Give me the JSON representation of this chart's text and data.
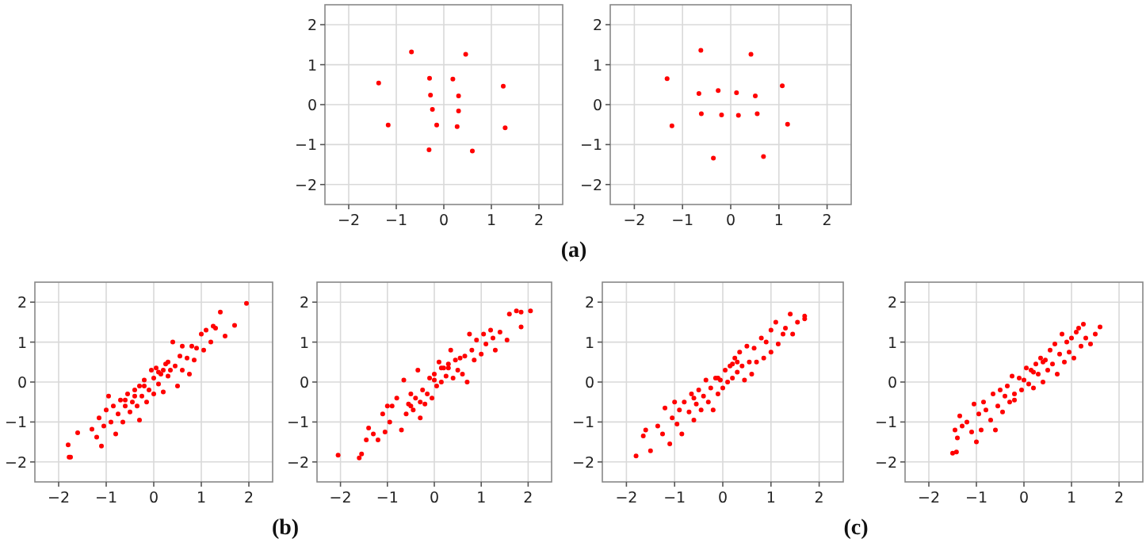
{
  "chart_data": [
    {
      "type": "scatter",
      "color": "#ff0000",
      "marker": "circle",
      "grid": true,
      "xlim": [
        -2.5,
        2.5
      ],
      "ylim": [
        -2.5,
        2.5
      ],
      "xticks": [
        -2,
        -1,
        0,
        1,
        2
      ],
      "yticks": [
        -2,
        -1,
        0,
        1,
        2
      ],
      "annotations": [
        "(a)"
      ],
      "x": [
        -0.68,
        0.46,
        -1.37,
        -0.3,
        0.19,
        1.25,
        -0.28,
        0.31,
        -0.24,
        0.31,
        -1.17,
        -0.15,
        0.28,
        1.29,
        -0.31,
        0.6
      ],
      "values": [
        1.32,
        1.26,
        0.54,
        0.66,
        0.64,
        0.46,
        0.24,
        0.22,
        -0.12,
        -0.16,
        -0.51,
        -0.51,
        -0.55,
        -0.58,
        -1.13,
        -1.16
      ]
    },
    {
      "type": "scatter",
      "color": "#ff0000",
      "marker": "circle",
      "grid": true,
      "xlim": [
        -2.5,
        2.5
      ],
      "ylim": [
        -2.5,
        2.5
      ],
      "xticks": [
        -2,
        -1,
        0,
        1,
        2
      ],
      "yticks": [
        -2,
        -1,
        0,
        1,
        2
      ],
      "x": [
        -0.62,
        0.42,
        -1.32,
        -0.66,
        -0.26,
        0.12,
        0.51,
        1.07,
        -0.61,
        -0.19,
        0.16,
        0.55,
        -1.22,
        1.18,
        -0.36,
        0.68
      ],
      "values": [
        1.36,
        1.26,
        0.65,
        0.28,
        0.35,
        0.3,
        0.22,
        0.47,
        -0.23,
        -0.26,
        -0.27,
        -0.23,
        -0.53,
        -0.49,
        -1.34,
        -1.3
      ]
    },
    {
      "type": "scatter",
      "color": "#ff0000",
      "marker": "circle",
      "grid": true,
      "xlim": [
        -2.5,
        2.5
      ],
      "ylim": [
        -2.5,
        2.5
      ],
      "xticks": [
        -2,
        -1,
        0,
        1,
        2
      ],
      "yticks": [
        -2,
        -1,
        0,
        1,
        2
      ],
      "annotations": [
        "(b)"
      ],
      "x": [
        -1.78,
        -1.75,
        -1.8,
        -1.6,
        -1.3,
        -1.2,
        -1.15,
        -1.1,
        -1.05,
        -1.0,
        -0.95,
        -0.9,
        -0.85,
        -0.8,
        -0.75,
        -0.7,
        -0.65,
        -0.6,
        -0.55,
        -0.5,
        -0.45,
        -0.4,
        -0.35,
        -0.3,
        -0.3,
        -0.25,
        -0.2,
        -0.15,
        -0.1,
        -0.05,
        0,
        0,
        0.05,
        0.1,
        0.15,
        0.2,
        0.25,
        0.3,
        0.35,
        0.4,
        0.45,
        0.5,
        0.55,
        0.6,
        0.7,
        0.75,
        0.8,
        0.85,
        0.9,
        1.0,
        1.05,
        1.1,
        1.2,
        1.25,
        1.3,
        1.4,
        1.5,
        1.7,
        1.95,
        0.2,
        -0.2,
        0.1,
        -0.4,
        0.3,
        -0.6,
        0.6
      ],
      "values": [
        -1.88,
        -1.88,
        -1.57,
        -1.27,
        -1.18,
        -1.38,
        -0.9,
        -1.6,
        -1.1,
        -0.7,
        -0.35,
        -1.0,
        -0.6,
        -1.3,
        -0.8,
        -0.45,
        -1.0,
        -0.6,
        -0.3,
        -0.75,
        -0.5,
        -0.2,
        -0.6,
        -0.1,
        -0.95,
        -0.35,
        0.05,
        -0.5,
        -0.2,
        0.3,
        0.1,
        -0.3,
        0.35,
        -0.05,
        0.2,
        -0.25,
        0.45,
        0.15,
        0.3,
        1.0,
        0.4,
        -0.1,
        0.65,
        0.3,
        0.6,
        0.2,
        0.9,
        0.55,
        0.85,
        1.2,
        0.8,
        1.3,
        1.0,
        1.4,
        1.35,
        1.75,
        1.15,
        1.42,
        1.97,
        0.3,
        -0.1,
        0.25,
        -0.35,
        0.5,
        -0.45,
        0.9
      ]
    },
    {
      "type": "scatter",
      "color": "#ff0000",
      "marker": "circle",
      "grid": true,
      "xlim": [
        -2.5,
        2.5
      ],
      "ylim": [
        -2.5,
        2.5
      ],
      "xticks": [
        -2,
        -1,
        0,
        1,
        2
      ],
      "yticks": [
        -2,
        -1,
        0,
        1,
        2
      ],
      "x": [
        -2.05,
        -1.6,
        -1.55,
        -1.45,
        -1.4,
        -1.3,
        -1.2,
        -1.1,
        -1.05,
        -1.0,
        -0.95,
        -0.9,
        -0.8,
        -0.7,
        -0.65,
        -0.6,
        -0.55,
        -0.5,
        -0.45,
        -0.4,
        -0.35,
        -0.3,
        -0.25,
        -0.2,
        -0.15,
        -0.1,
        -0.05,
        0,
        0.05,
        0.1,
        0.15,
        0.2,
        0.25,
        0.3,
        0.35,
        0.4,
        0.45,
        0.5,
        0.55,
        0.6,
        0.65,
        0.7,
        0.75,
        0.8,
        0.85,
        0.9,
        1.0,
        1.05,
        1.1,
        1.2,
        1.25,
        1.3,
        1.4,
        1.55,
        1.6,
        1.75,
        1.85,
        1.85,
        2.05,
        0.3,
        -0.3,
        0.15,
        -0.5,
        0.0
      ],
      "values": [
        -1.83,
        -1.9,
        -1.8,
        -1.45,
        -1.15,
        -1.3,
        -1.45,
        -0.8,
        -1.25,
        -0.6,
        -1.0,
        -0.6,
        -0.4,
        -1.2,
        0.05,
        -0.8,
        -0.55,
        -0.3,
        -0.7,
        -0.4,
        0.3,
        -0.9,
        -0.2,
        -0.55,
        -0.3,
        0.1,
        -0.4,
        0.2,
        -0.1,
        0.5,
        0.0,
        0.35,
        0.15,
        0.45,
        0.8,
        0.1,
        0.55,
        0.3,
        0.6,
        0.2,
        0.65,
        0.0,
        1.2,
        0.8,
        0.55,
        1.05,
        0.7,
        1.2,
        0.95,
        1.3,
        1.1,
        0.8,
        1.25,
        1.05,
        1.7,
        1.78,
        1.38,
        1.75,
        1.78,
        0.35,
        -0.5,
        0.35,
        -0.6,
        0.05
      ]
    },
    {
      "type": "scatter",
      "color": "#ff0000",
      "marker": "circle",
      "grid": true,
      "xlim": [
        -2.5,
        2.5
      ],
      "ylim": [
        -2.5,
        2.5
      ],
      "xticks": [
        -2,
        -1,
        0,
        1,
        2
      ],
      "yticks": [
        -2,
        -1,
        0,
        1,
        2
      ],
      "annotations": [
        "(c)"
      ],
      "x": [
        -1.8,
        -1.65,
        -1.6,
        -1.5,
        -1.35,
        -1.25,
        -1.2,
        -1.1,
        -1.05,
        -1.0,
        -0.95,
        -0.9,
        -0.85,
        -0.8,
        -0.7,
        -0.65,
        -0.6,
        -0.55,
        -0.5,
        -0.45,
        -0.4,
        -0.35,
        -0.3,
        -0.25,
        -0.2,
        -0.15,
        -0.1,
        -0.05,
        0,
        0.05,
        0.1,
        0.15,
        0.2,
        0.25,
        0.3,
        0.35,
        0.4,
        0.45,
        0.5,
        0.55,
        0.6,
        0.65,
        0.7,
        0.8,
        0.85,
        0.9,
        1.0,
        1.0,
        1.1,
        1.15,
        1.25,
        1.3,
        1.4,
        1.45,
        1.55,
        1.7,
        1.7,
        0.2,
        -0.1,
        0.3,
        -0.6
      ],
      "values": [
        -1.85,
        -1.35,
        -1.2,
        -1.72,
        -1.1,
        -1.3,
        -0.65,
        -1.55,
        -0.9,
        -0.5,
        -1.05,
        -0.7,
        -1.3,
        -0.5,
        -0.75,
        -0.3,
        -0.95,
        -0.55,
        -0.2,
        -0.7,
        -0.35,
        0.05,
        -0.5,
        -0.15,
        -0.7,
        0.1,
        -0.3,
        0.05,
        -0.15,
        0.3,
        0.0,
        0.4,
        0.1,
        0.6,
        0.25,
        0.75,
        0.4,
        0.05,
        0.9,
        0.5,
        0.2,
        0.85,
        0.5,
        1.1,
        0.6,
        1.0,
        1.3,
        0.75,
        1.5,
        0.95,
        1.2,
        1.35,
        1.7,
        1.2,
        1.5,
        1.65,
        1.58,
        0.45,
        0.1,
        0.5,
        -0.4
      ]
    },
    {
      "type": "scatter",
      "color": "#ff0000",
      "marker": "circle",
      "grid": true,
      "xlim": [
        -2.5,
        2.5
      ],
      "ylim": [
        -2.5,
        2.5
      ],
      "xticks": [
        -2,
        -1,
        0,
        1,
        2
      ],
      "yticks": [
        -2,
        -1,
        0,
        1,
        2
      ],
      "x": [
        -1.5,
        -1.42,
        -1.45,
        -1.4,
        -1.35,
        -1.3,
        -1.2,
        -1.1,
        -1.05,
        -1.0,
        -0.95,
        -0.9,
        -0.85,
        -0.8,
        -0.7,
        -0.65,
        -0.6,
        -0.55,
        -0.5,
        -0.45,
        -0.4,
        -0.35,
        -0.3,
        -0.25,
        -0.2,
        -0.1,
        -0.05,
        0,
        0.05,
        0.1,
        0.15,
        0.2,
        0.25,
        0.3,
        0.35,
        0.4,
        0.45,
        0.5,
        0.55,
        0.6,
        0.65,
        0.7,
        0.75,
        0.8,
        0.85,
        0.9,
        0.95,
        1.0,
        1.05,
        1.1,
        1.15,
        1.2,
        1.25,
        1.3,
        1.4,
        1.5,
        1.6,
        0.2,
        -0.2,
        0.4
      ],
      "values": [
        -1.78,
        -1.75,
        -1.2,
        -1.4,
        -0.85,
        -1.1,
        -1.0,
        -1.25,
        -0.55,
        -1.5,
        -0.8,
        -1.2,
        -0.5,
        -0.7,
        -0.95,
        -0.3,
        -1.2,
        -0.6,
        -0.2,
        -0.75,
        -0.35,
        -0.1,
        -0.5,
        0.15,
        -0.3,
        0.1,
        -0.2,
        0.05,
        0.35,
        -0.05,
        0.3,
        -0.15,
        0.45,
        0.2,
        0.6,
        0.0,
        0.55,
        0.3,
        0.8,
        0.45,
        0.95,
        0.2,
        0.7,
        1.2,
        0.5,
        1.0,
        0.75,
        1.1,
        0.6,
        1.25,
        1.35,
        0.9,
        1.45,
        1.1,
        0.95,
        1.2,
        1.38,
        0.25,
        -0.45,
        0.5
      ]
    }
  ]
}
